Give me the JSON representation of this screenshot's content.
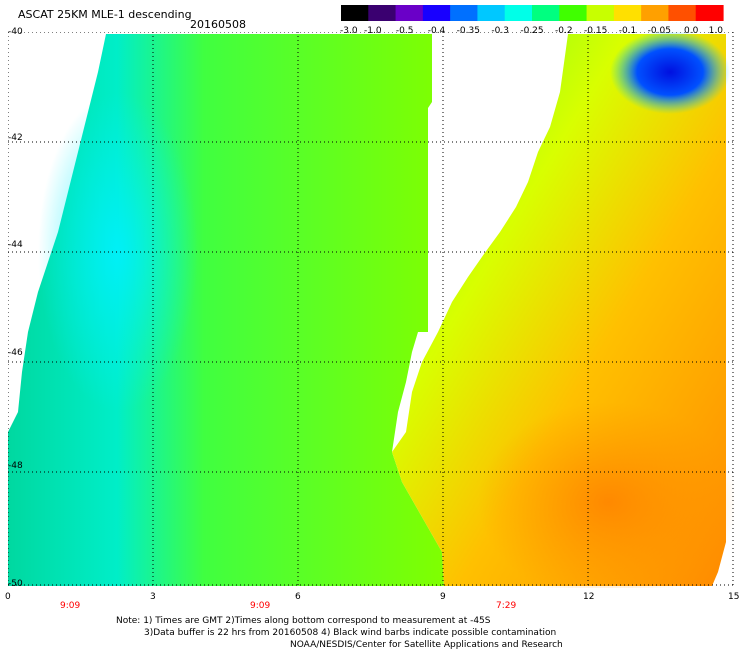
{
  "header": {
    "title": "ASCAT 25KM MLE-1 descending",
    "date": "20160508"
  },
  "colorbar": {
    "labels": [
      "-3.0",
      "-1.0",
      "-0.5",
      "-0.4",
      "-0.35",
      "-0.3",
      "-0.25",
      "-0.2",
      "-0.15",
      "-0.1",
      "-0.05",
      "0.0",
      "1.0"
    ],
    "colors": [
      "#000000",
      "#3a0070",
      "#6a00c8",
      "#1800ff",
      "#0070ff",
      "#00c8ff",
      "#00ffe8",
      "#00ff80",
      "#40ff00",
      "#c8ff00",
      "#ffe000",
      "#ffa000",
      "#ff5000",
      "#ff0000"
    ]
  },
  "map": {
    "y_ticks": [
      "-40",
      "-42",
      "-44",
      "-46",
      "-48",
      "-50"
    ],
    "x_ticks": [
      "0",
      "3",
      "6",
      "9",
      "12",
      "15"
    ],
    "time_labels": [
      "9:09",
      "9:09",
      "7:29"
    ],
    "lat_range": [
      -50,
      -40
    ],
    "lon_range": [
      0,
      15
    ],
    "grid": true
  },
  "notes": {
    "line1": "Note: 1) Times are GMT 2)Times along bottom correspond to measurement at -45S",
    "line2": "3)Data buffer is 22 hrs from 20160508 4) Black wind barbs indicate possible contamination",
    "line3": "NOAA/NESDIS/Center for Satellite Applications and Research"
  }
}
